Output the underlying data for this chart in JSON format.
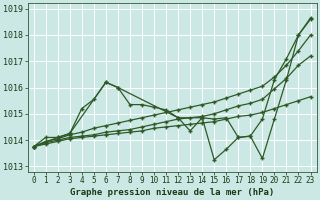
{
  "xlabel": "Graphe pression niveau de la mer (hPa)",
  "bg_color": "#cce8e4",
  "grid_color": "#ffffff",
  "line_color": "#2d5a27",
  "text_color": "#1a3a18",
  "xlim": [
    -0.5,
    23.5
  ],
  "ylim": [
    1012.8,
    1019.2
  ],
  "yticks": [
    1013,
    1014,
    1015,
    1016,
    1017,
    1018,
    1019
  ],
  "xticks": [
    0,
    1,
    2,
    3,
    4,
    5,
    6,
    7,
    8,
    9,
    10,
    11,
    12,
    13,
    14,
    15,
    16,
    17,
    18,
    19,
    20,
    21,
    22,
    23
  ],
  "lines": [
    {
      "x": [
        0,
        1,
        2,
        3,
        4,
        5,
        6,
        7,
        8,
        9,
        10,
        11,
        12,
        13,
        14,
        15,
        16,
        17,
        18,
        19,
        20,
        21,
        22,
        23
      ],
      "y": [
        1013.75,
        1014.1,
        1014.1,
        1014.25,
        1015.2,
        1015.55,
        1016.2,
        1016.0,
        1015.35,
        1015.35,
        1015.25,
        1015.15,
        1014.85,
        1014.35,
        1014.85,
        1014.8,
        1014.85,
        1014.1,
        1014.15,
        1014.8,
        1016.3,
        1017.1,
        1018.0,
        1018.6
      ]
    },
    {
      "x": [
        0,
        1,
        2,
        3,
        4,
        5,
        6,
        7,
        8,
        9,
        10,
        11,
        12,
        13,
        14,
        15,
        16,
        17,
        18,
        19,
        20,
        21,
        22,
        23
      ],
      "y": [
        1013.75,
        1013.95,
        1014.05,
        1014.2,
        1014.3,
        1014.45,
        1014.55,
        1014.65,
        1014.75,
        1014.85,
        1014.95,
        1015.05,
        1015.15,
        1015.25,
        1015.35,
        1015.45,
        1015.6,
        1015.75,
        1015.9,
        1016.05,
        1016.4,
        1016.85,
        1017.4,
        1018.0
      ]
    },
    {
      "x": [
        0,
        1,
        2,
        3,
        4,
        5,
        6,
        7,
        8,
        9,
        10,
        11,
        12,
        13,
        14,
        15,
        16,
        17,
        18,
        19,
        20,
        21,
        22,
        23
      ],
      "y": [
        1013.75,
        1013.9,
        1014.0,
        1014.1,
        1014.15,
        1014.2,
        1014.3,
        1014.35,
        1014.4,
        1014.5,
        1014.6,
        1014.7,
        1014.8,
        1014.85,
        1014.9,
        1015.0,
        1015.15,
        1015.3,
        1015.4,
        1015.55,
        1015.95,
        1016.35,
        1016.85,
        1017.2
      ]
    },
    {
      "x": [
        0,
        1,
        2,
        3,
        4,
        5,
        6,
        7,
        8,
        9,
        10,
        11,
        12,
        13,
        14,
        15,
        16,
        17,
        18,
        19,
        20,
        21,
        22,
        23
      ],
      "y": [
        1013.75,
        1013.85,
        1013.95,
        1014.05,
        1014.1,
        1014.15,
        1014.2,
        1014.25,
        1014.3,
        1014.35,
        1014.45,
        1014.5,
        1014.55,
        1014.6,
        1014.65,
        1014.7,
        1014.8,
        1014.9,
        1014.95,
        1015.05,
        1015.2,
        1015.35,
        1015.5,
        1015.65
      ]
    },
    {
      "x": [
        0,
        2,
        3,
        6,
        7,
        12,
        14,
        15,
        16,
        17,
        18,
        19,
        20,
        21,
        22,
        23
      ],
      "y": [
        1013.75,
        1014.1,
        1014.25,
        1016.2,
        1016.0,
        1014.85,
        1014.85,
        1013.25,
        1013.65,
        1014.1,
        1014.15,
        1013.3,
        1014.8,
        1016.3,
        1018.0,
        1018.65
      ]
    }
  ],
  "marker": "+",
  "markersize": 3.5,
  "markeredgewidth": 1.0,
  "linewidth": 0.9,
  "xlabel_fontsize": 6.5,
  "tick_fontsize": 5.5
}
